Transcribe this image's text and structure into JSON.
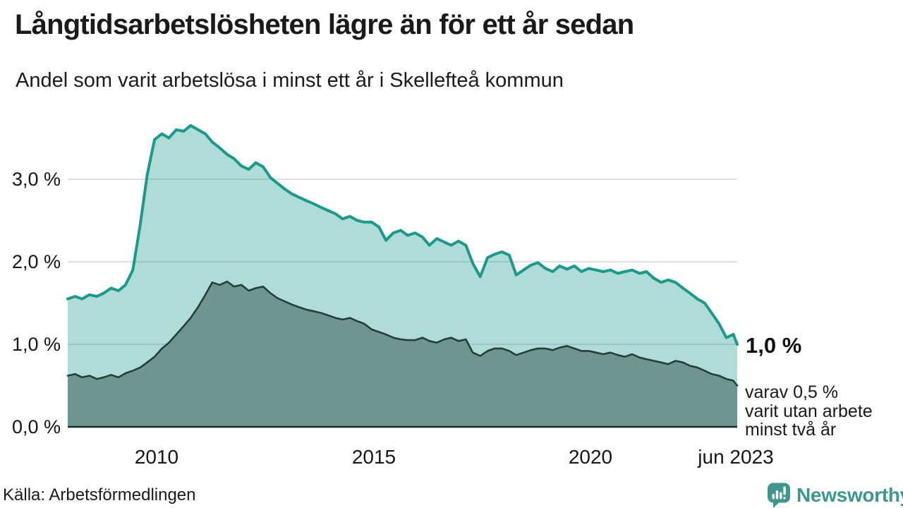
{
  "header": {
    "title": "Långtidsarbetslösheten lägre än för ett år sedan",
    "subtitle": "Andel som varit arbetslösa i minst ett år i Skellefteå kommun"
  },
  "y_axis": {
    "labels": [
      "3,0 %",
      "2,0 %",
      "1,0 %",
      "0,0 %"
    ],
    "grid_values": [
      3,
      2,
      1
    ]
  },
  "x_axis": {
    "ticks": [
      {
        "label": "2010",
        "year": 2010
      },
      {
        "label": "2015",
        "year": 2015
      },
      {
        "label": "2020",
        "year": 2020
      },
      {
        "label": "jun 2023",
        "year": 2023.42
      }
    ]
  },
  "annotations": {
    "end_value": "1,0 %",
    "note_lines": [
      "varav 0,5 %",
      "varit utan arbete",
      "minst två år"
    ]
  },
  "footer": {
    "source": "Källa: Arbetsförmedlingen",
    "brand": "Newsworthy"
  },
  "colors": {
    "line_one_year": "#199a8b",
    "fill_one_year": "rgba(25,154,138,0.35)",
    "line_two_years": "#233f39",
    "fill_two_years": "#6f968e",
    "gridline": "#e0e0e0",
    "baseline": "#1a2a26",
    "brand_teal": "#3e978c",
    "text": "#1a1a1a"
  },
  "chart_data": {
    "type": "area",
    "title": "Långtidsarbetslösheten lägre än för ett år sedan",
    "subtitle": "Andel som varit arbetslösa i minst ett år i Skellefteå kommun",
    "unit": "%",
    "x_range": [
      2008,
      2023.42
    ],
    "y_range": [
      0,
      3.8
    ],
    "grid": true,
    "x": [
      2008,
      2008.17,
      2008.33,
      2008.5,
      2008.67,
      2008.83,
      2009,
      2009.17,
      2009.33,
      2009.5,
      2009.67,
      2009.83,
      2010,
      2010.17,
      2010.33,
      2010.5,
      2010.67,
      2010.83,
      2011,
      2011.17,
      2011.33,
      2011.5,
      2011.67,
      2011.83,
      2012,
      2012.17,
      2012.33,
      2012.5,
      2012.67,
      2012.83,
      2013,
      2013.17,
      2013.33,
      2013.5,
      2013.67,
      2013.83,
      2014,
      2014.17,
      2014.33,
      2014.5,
      2014.67,
      2014.83,
      2015,
      2015.17,
      2015.33,
      2015.5,
      2015.67,
      2015.83,
      2016,
      2016.17,
      2016.33,
      2016.5,
      2016.67,
      2016.83,
      2017,
      2017.17,
      2017.33,
      2017.5,
      2017.67,
      2017.83,
      2018,
      2018.17,
      2018.33,
      2018.5,
      2018.67,
      2018.83,
      2019,
      2019.17,
      2019.33,
      2019.5,
      2019.67,
      2019.83,
      2020,
      2020.17,
      2020.33,
      2020.5,
      2020.67,
      2020.83,
      2021,
      2021.17,
      2021.33,
      2021.5,
      2021.67,
      2021.83,
      2022,
      2022.17,
      2022.33,
      2022.5,
      2022.67,
      2022.83,
      2023,
      2023.17,
      2023.33,
      2023.42
    ],
    "series": [
      {
        "name": "minst ett år",
        "end_label": "1,0 %",
        "values": [
          1.55,
          1.58,
          1.55,
          1.6,
          1.58,
          1.62,
          1.68,
          1.65,
          1.72,
          1.9,
          2.45,
          3.05,
          3.48,
          3.55,
          3.5,
          3.6,
          3.58,
          3.65,
          3.6,
          3.55,
          3.45,
          3.38,
          3.3,
          3.25,
          3.16,
          3.12,
          3.2,
          3.15,
          3.02,
          2.95,
          2.88,
          2.82,
          2.78,
          2.74,
          2.7,
          2.66,
          2.62,
          2.58,
          2.52,
          2.55,
          2.5,
          2.48,
          2.48,
          2.42,
          2.26,
          2.35,
          2.38,
          2.32,
          2.35,
          2.3,
          2.2,
          2.28,
          2.24,
          2.2,
          2.25,
          2.2,
          1.98,
          1.82,
          2.05,
          2.09,
          2.12,
          2.08,
          1.84,
          1.9,
          1.96,
          1.99,
          1.92,
          1.88,
          1.95,
          1.91,
          1.95,
          1.88,
          1.92,
          1.9,
          1.88,
          1.9,
          1.86,
          1.88,
          1.9,
          1.86,
          1.88,
          1.8,
          1.75,
          1.78,
          1.75,
          1.68,
          1.62,
          1.55,
          1.5,
          1.38,
          1.25,
          1.08,
          1.12,
          1.0
        ]
      },
      {
        "name": "minst två år",
        "end_label": "0,5 %",
        "values": [
          0.62,
          0.64,
          0.6,
          0.62,
          0.58,
          0.6,
          0.63,
          0.6,
          0.65,
          0.68,
          0.72,
          0.78,
          0.85,
          0.95,
          1.02,
          1.12,
          1.22,
          1.32,
          1.45,
          1.6,
          1.75,
          1.72,
          1.76,
          1.7,
          1.72,
          1.65,
          1.68,
          1.7,
          1.62,
          1.56,
          1.52,
          1.48,
          1.45,
          1.42,
          1.4,
          1.38,
          1.35,
          1.32,
          1.3,
          1.32,
          1.28,
          1.25,
          1.18,
          1.15,
          1.12,
          1.08,
          1.06,
          1.05,
          1.05,
          1.08,
          1.04,
          1.02,
          1.06,
          1.08,
          1.04,
          1.06,
          0.9,
          0.86,
          0.92,
          0.95,
          0.95,
          0.92,
          0.87,
          0.9,
          0.93,
          0.95,
          0.95,
          0.93,
          0.96,
          0.98,
          0.95,
          0.92,
          0.92,
          0.9,
          0.88,
          0.9,
          0.87,
          0.85,
          0.88,
          0.84,
          0.82,
          0.8,
          0.78,
          0.76,
          0.8,
          0.78,
          0.74,
          0.72,
          0.68,
          0.64,
          0.62,
          0.58,
          0.56,
          0.5
        ]
      }
    ]
  }
}
